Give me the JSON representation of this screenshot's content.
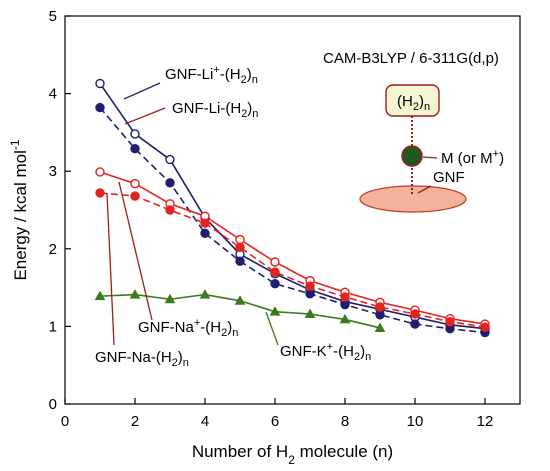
{
  "chart_data": {
    "type": "line",
    "xlabel": {
      "pre": "Number of H",
      "sub": "2",
      "post": " molecule (n)"
    },
    "ylabel": {
      "pre": "Energy / kcal mol",
      "sup": "-1"
    },
    "xlim": [
      0,
      13
    ],
    "ylim": [
      0,
      5
    ],
    "xticks": [
      0,
      2,
      4,
      6,
      8,
      10,
      12
    ],
    "yticks": [
      0,
      1,
      2,
      3,
      4,
      5
    ],
    "method_label": "CAM-B3LYP / 6-311G(d,p)",
    "series": [
      {
        "name": "GNF-Li+-(H2)n",
        "color": "#1f1f6e",
        "dashed": false,
        "filled": false,
        "x": [
          1,
          2,
          3,
          4,
          5,
          6,
          7,
          8,
          9,
          10,
          11,
          12
        ],
        "y": [
          4.13,
          3.48,
          3.15,
          2.4,
          1.93,
          1.68,
          1.47,
          1.32,
          1.22,
          1.12,
          1.02,
          0.97
        ]
      },
      {
        "name": "GNF-Li-(H2)n",
        "color": "#1f1f6e",
        "dashed": true,
        "filled": true,
        "x": [
          1,
          2,
          3,
          4,
          5,
          6,
          7,
          8,
          9,
          10,
          11,
          12
        ],
        "y": [
          3.82,
          3.29,
          2.85,
          2.2,
          1.84,
          1.55,
          1.42,
          1.28,
          1.15,
          1.03,
          0.97,
          0.92
        ]
      },
      {
        "name": "GNF-Na+-(H2)n",
        "color": "#e5221d",
        "dashed": false,
        "filled": false,
        "x": [
          1,
          2,
          3,
          4,
          5,
          6,
          7,
          8,
          9,
          10,
          11,
          12
        ],
        "y": [
          2.99,
          2.84,
          2.58,
          2.42,
          2.12,
          1.83,
          1.59,
          1.44,
          1.31,
          1.21,
          1.1,
          1.03
        ]
      },
      {
        "name": "GNF-Na-(H2)n",
        "color": "#e5221d",
        "dashed": true,
        "filled": true,
        "x": [
          1,
          2,
          3,
          4,
          5,
          6,
          7,
          8,
          9,
          10,
          11,
          12
        ],
        "y": [
          2.72,
          2.68,
          2.5,
          2.33,
          2.02,
          1.7,
          1.52,
          1.38,
          1.25,
          1.16,
          1.06,
          0.99
        ]
      },
      {
        "name": "GNF-K+-(H2)n",
        "color": "#3d7a1e",
        "dashed": false,
        "filled": true,
        "marker": "triangle",
        "x": [
          1,
          2,
          3,
          4,
          5,
          6,
          7,
          8,
          9
        ],
        "y": [
          1.39,
          1.41,
          1.35,
          1.41,
          1.33,
          1.19,
          1.16,
          1.09,
          0.98
        ]
      }
    ],
    "labels": [
      {
        "name": "label-gnf-li-plus",
        "pre": "GNF-Li",
        "sup": "+",
        "post": "-(H",
        "sub2": "2",
        "post2": ")",
        "subn": "n"
      },
      {
        "name": "label-gnf-li",
        "pre": "GNF-Li-(H",
        "sub2": "2",
        "post2": ")",
        "subn": "n"
      },
      {
        "name": "label-gnf-na-plus",
        "pre": "GNF-Na",
        "sup": "+",
        "post": "-(H",
        "sub2": "2",
        "post2": ")",
        "subn": "n"
      },
      {
        "name": "label-gnf-na",
        "pre": "GNF-Na-(H",
        "sub2": "2",
        "post2": ")",
        "subn": "n"
      },
      {
        "name": "label-gnf-k-plus",
        "pre": "GNF-K",
        "sup": "+",
        "post": "-(H",
        "sub2": "2",
        "post2": ")",
        "subn": "n"
      }
    ],
    "schematic": {
      "h2_pre": "(H",
      "h2_sub": "2",
      "h2_post": ")",
      "h2_subn": "n",
      "metal_pre": "M (or M",
      "metal_sup": "+",
      "metal_post": ")",
      "gnf": "GNF",
      "box_fill": "#f4f6d2",
      "box_stroke": "#a01c1c",
      "metal_fill": "#1e5a1e",
      "disk_fill": "#f4b29a",
      "disk_stroke": "#c0391f"
    }
  }
}
